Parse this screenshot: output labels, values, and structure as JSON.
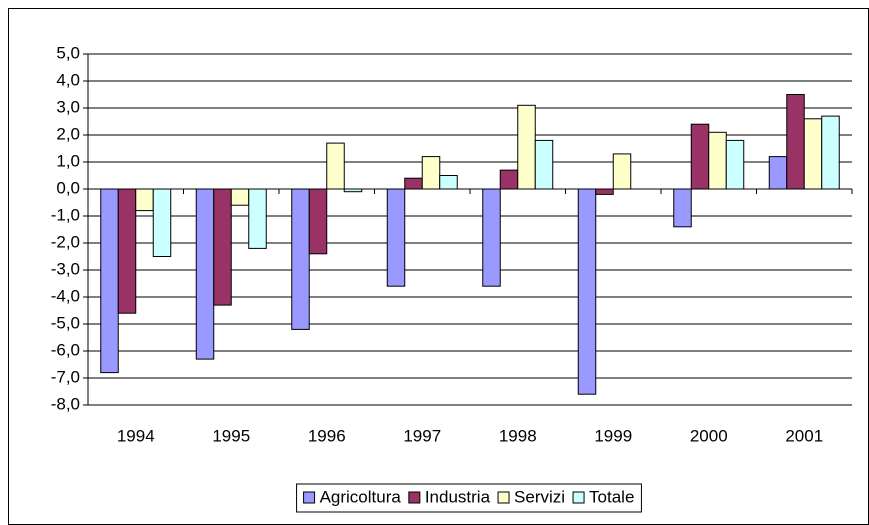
{
  "chart_data": {
    "type": "bar",
    "categories": [
      "1994",
      "1995",
      "1996",
      "1997",
      "1998",
      "1999",
      "2000",
      "2001"
    ],
    "series": [
      {
        "name": "Agricoltura",
        "color": "#9999ff",
        "values": [
          -6.8,
          -6.3,
          -5.2,
          -3.6,
          -3.6,
          -7.6,
          -1.4,
          1.2
        ]
      },
      {
        "name": "Industria",
        "color": "#993366",
        "values": [
          -4.6,
          -4.3,
          -2.4,
          0.4,
          0.7,
          -0.2,
          2.4,
          3.5
        ]
      },
      {
        "name": "Servizi",
        "color": "#ffffcc",
        "values": [
          -0.8,
          -0.6,
          1.7,
          1.2,
          3.1,
          1.3,
          2.1,
          2.6
        ]
      },
      {
        "name": "Totale",
        "color": "#ccffff",
        "values": [
          -2.5,
          -2.2,
          -0.1,
          0.5,
          1.8,
          0.0,
          1.8,
          2.7
        ]
      }
    ],
    "ylim": [
      -8,
      5
    ],
    "yticks": [
      {
        "value": -8,
        "label": "-8,0"
      },
      {
        "value": -7,
        "label": "-7,0"
      },
      {
        "value": -6,
        "label": "-6,0"
      },
      {
        "value": -5,
        "label": "-5,0"
      },
      {
        "value": -4,
        "label": "-4,0"
      },
      {
        "value": -3,
        "label": "-3,0"
      },
      {
        "value": -2,
        "label": "-2,0"
      },
      {
        "value": -1,
        "label": "-1,0"
      },
      {
        "value": 0,
        "label": "0,0"
      },
      {
        "value": 1,
        "label": "1,0"
      },
      {
        "value": 2,
        "label": "2,0"
      },
      {
        "value": 3,
        "label": "3,0"
      },
      {
        "value": 4,
        "label": "4,0"
      },
      {
        "value": 5,
        "label": "5,0"
      }
    ],
    "grid": true,
    "legend": "bottom"
  }
}
